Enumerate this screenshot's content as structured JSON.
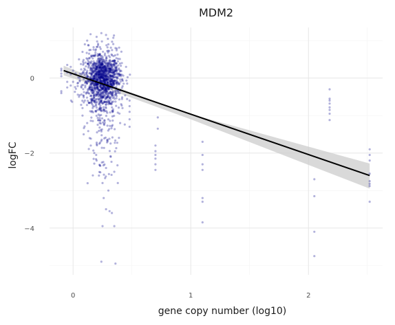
{
  "chart_data": {
    "type": "scatter",
    "title": "MDM2",
    "xlabel": "gene copy number (log10)",
    "ylabel": "logFC",
    "xlim": [
      -0.2,
      2.63
    ],
    "ylim": [
      -5.25,
      1.35
    ],
    "x_ticks": [
      0,
      1,
      2
    ],
    "x_tick_labels": [
      "0",
      "1",
      "2"
    ],
    "y_ticks": [
      0,
      -2,
      -4
    ],
    "y_tick_labels": [
      "0",
      "−2",
      "−4"
    ],
    "grid": true,
    "point_color": "#00008b",
    "point_alpha": 0.3,
    "fit_line": {
      "x": [
        -0.08,
        2.52
      ],
      "y": [
        0.2,
        -2.6
      ],
      "color": "#000000"
    },
    "confidence_band": {
      "x": [
        -0.08,
        0.3,
        1.0,
        2.52
      ],
      "lower": [
        0.07,
        -0.3,
        -1.1,
        -2.95
      ],
      "upper": [
        0.33,
        -0.16,
        -0.96,
        -2.28
      ],
      "color": "#cccccc"
    },
    "dense_cluster": {
      "center": [
        0.25,
        0.0
      ],
      "sd": [
        0.08,
        0.35
      ]
    },
    "series": [
      {
        "points": [
          [
            -0.1,
            0.25
          ],
          [
            -0.1,
            0.05
          ],
          [
            -0.1,
            -0.4
          ],
          [
            -0.05,
            0.15
          ],
          [
            -0.05,
            0.35
          ],
          [
            -0.05,
            -0.1
          ],
          [
            -0.05,
            -0.25
          ],
          [
            -0.02,
            0.3
          ],
          [
            -0.02,
            0.1
          ],
          [
            -0.02,
            -0.2
          ],
          [
            0.0,
            0.2
          ],
          [
            0.0,
            -0.1
          ],
          [
            0.05,
            0.5
          ],
          [
            0.05,
            -0.5
          ],
          [
            0.08,
            0.7
          ],
          [
            0.08,
            -0.8
          ],
          [
            0.08,
            -1.0
          ],
          [
            0.09,
            -1.5
          ],
          [
            0.1,
            0.9
          ],
          [
            0.1,
            -0.6
          ],
          [
            0.12,
            1.0
          ],
          [
            0.12,
            -1.2
          ],
          [
            0.15,
            -1.8
          ],
          [
            0.18,
            -2.0
          ],
          [
            0.2,
            1.1
          ],
          [
            0.2,
            -2.2
          ],
          [
            0.22,
            -2.6
          ],
          [
            0.24,
            1.2
          ],
          [
            0.25,
            -2.8
          ],
          [
            0.26,
            -3.2
          ],
          [
            0.28,
            1.15
          ],
          [
            0.28,
            -2.4
          ],
          [
            0.3,
            -3.0
          ],
          [
            0.3,
            0.9
          ],
          [
            0.32,
            -2.1
          ],
          [
            0.33,
            -3.6
          ],
          [
            0.35,
            -2.5
          ],
          [
            0.36,
            0.8
          ],
          [
            0.38,
            -2.8
          ],
          [
            0.4,
            -1.2
          ],
          [
            0.42,
            -0.8
          ],
          [
            0.45,
            0.3
          ],
          [
            0.48,
            -0.9
          ],
          [
            0.48,
            -1.3
          ],
          [
            0.48,
            -0.6
          ],
          [
            0.48,
            -1.1
          ],
          [
            0.48,
            -0.75
          ],
          [
            -0.1,
            0.2
          ],
          [
            -0.1,
            0.12
          ],
          [
            -0.1,
            -0.35
          ],
          [
            0.24,
            -4.9
          ],
          [
            0.36,
            -4.95
          ],
          [
            0.28,
            -3.5
          ],
          [
            0.31,
            -3.55
          ],
          [
            0.35,
            -3.95
          ],
          [
            0.25,
            -3.95
          ],
          [
            0.72,
            -1.05
          ],
          [
            0.72,
            -1.35
          ],
          [
            0.7,
            -1.8
          ],
          [
            0.7,
            -1.95
          ],
          [
            0.7,
            -2.05
          ],
          [
            0.7,
            -2.15
          ],
          [
            0.7,
            -2.3
          ],
          [
            0.7,
            -2.45
          ],
          [
            1.1,
            -1.7
          ],
          [
            1.1,
            -2.05
          ],
          [
            1.1,
            -2.3
          ],
          [
            1.1,
            -2.45
          ],
          [
            1.1,
            -3.2
          ],
          [
            1.1,
            -3.3
          ],
          [
            1.1,
            -3.85
          ],
          [
            2.05,
            -2.7
          ],
          [
            2.05,
            -3.15
          ],
          [
            2.05,
            -4.1
          ],
          [
            2.05,
            -4.75
          ],
          [
            2.18,
            -0.3
          ],
          [
            2.18,
            -0.55
          ],
          [
            2.18,
            -0.6
          ],
          [
            2.18,
            -0.68
          ],
          [
            2.18,
            -0.78
          ],
          [
            2.18,
            -0.85
          ],
          [
            2.18,
            -0.95
          ],
          [
            2.18,
            -1.12
          ],
          [
            2.52,
            -1.9
          ],
          [
            2.52,
            -2.05
          ],
          [
            2.52,
            -2.2
          ],
          [
            2.52,
            -2.55
          ],
          [
            2.52,
            -2.75
          ],
          [
            2.52,
            -2.82
          ],
          [
            2.52,
            -2.88
          ],
          [
            2.52,
            -3.3
          ]
        ]
      }
    ]
  }
}
